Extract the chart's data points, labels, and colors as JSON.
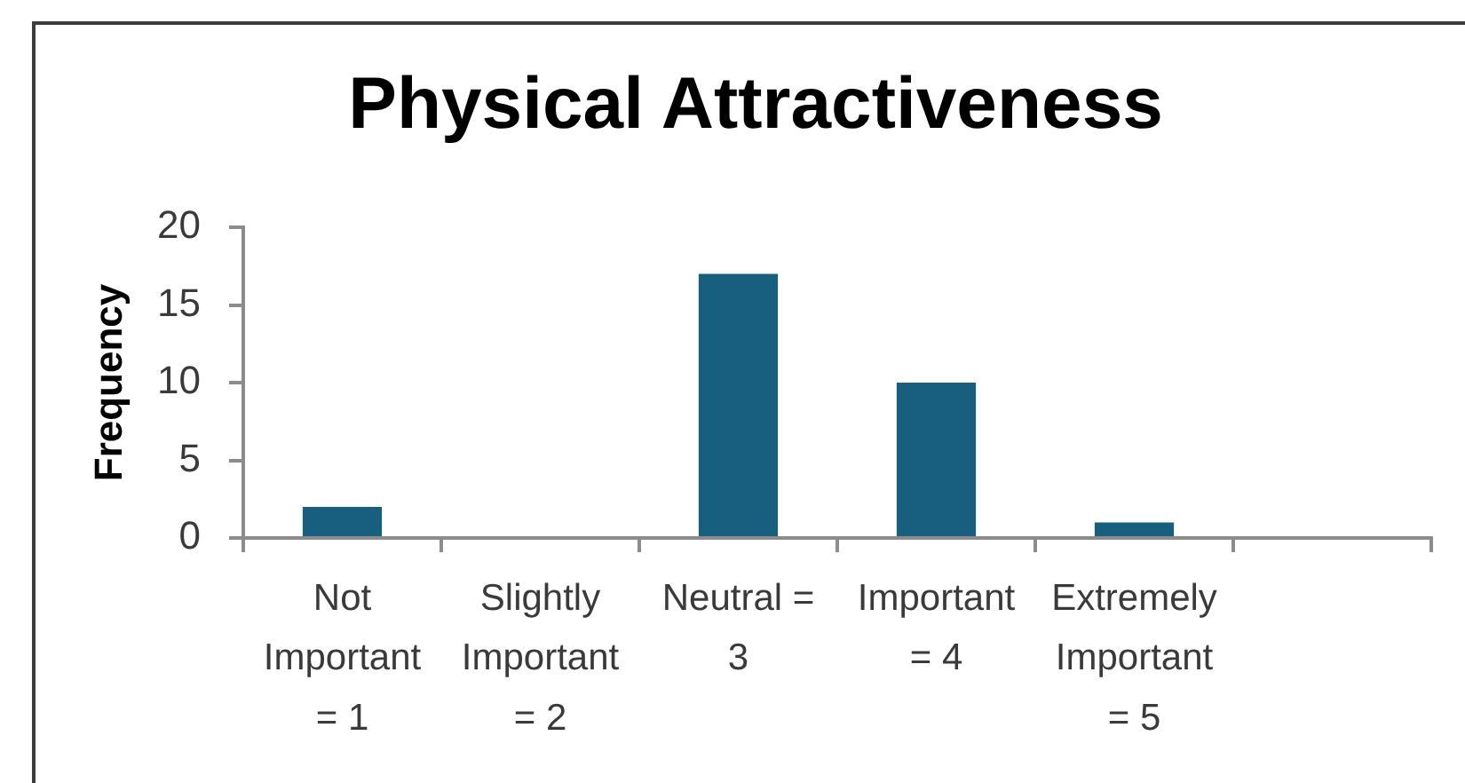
{
  "chart_data": {
    "type": "bar",
    "title": "Physical Attractiveness",
    "ylabel": "Frequency",
    "categories": [
      "Not Important = 1",
      "Slightly Important = 2",
      "Neutral = 3",
      "Important = 4",
      "Extremely Important = 5",
      null
    ],
    "values": [
      2,
      0,
      17,
      10,
      1,
      null
    ],
    "color": "#175e7f",
    "ylim": [
      0,
      20
    ],
    "yticks": [
      0,
      5,
      10,
      15,
      20
    ]
  }
}
